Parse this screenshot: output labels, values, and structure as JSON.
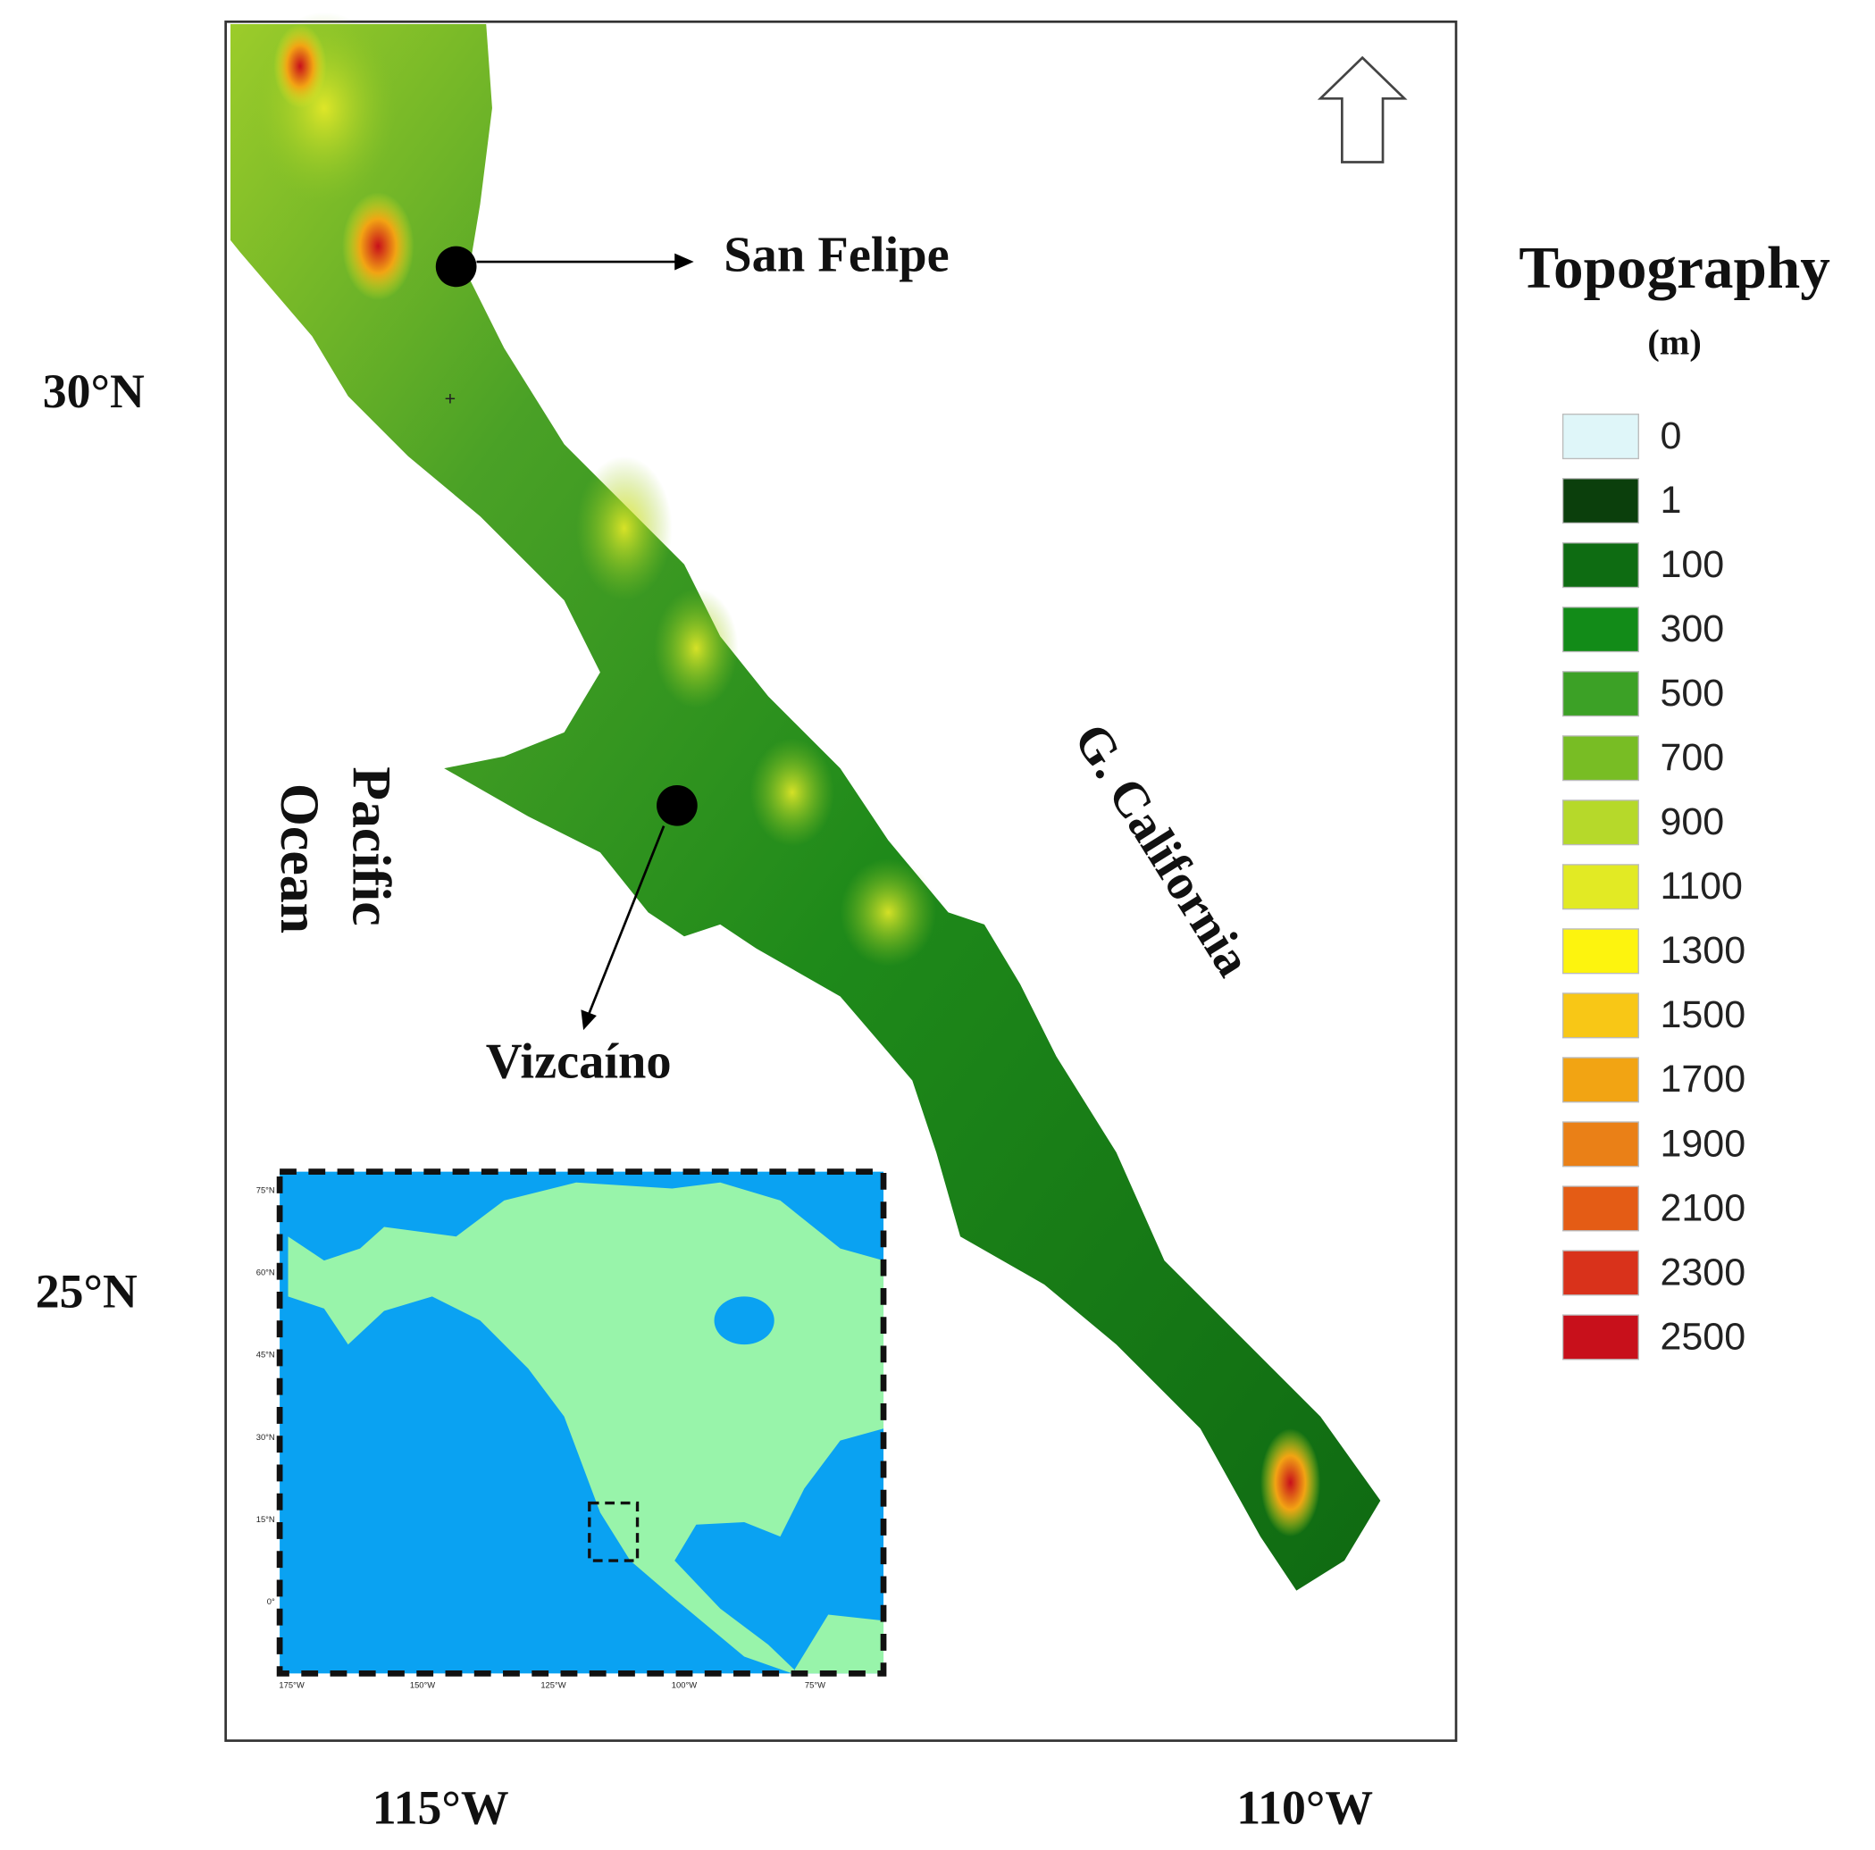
{
  "map": {
    "lat_labels": [
      "30°N",
      "25°N"
    ],
    "lon_labels": [
      "115°W",
      "110°W"
    ],
    "places": [
      "San Felipe",
      "Vizcaíno"
    ],
    "water_labels": {
      "pacific": [
        "Pacific",
        "Ocean"
      ],
      "gulf": "G. California"
    }
  },
  "legend": {
    "title": "Topography",
    "unit": "(m)",
    "items": [
      {
        "label": 0,
        "color": "#dff6f9"
      },
      {
        "label": 1,
        "color": "#0b3f0c"
      },
      {
        "label": 100,
        "color": "#0e6c12"
      },
      {
        "label": 300,
        "color": "#128b18"
      },
      {
        "label": 500,
        "color": "#3ca126"
      },
      {
        "label": 700,
        "color": "#78bd24"
      },
      {
        "label": 900,
        "color": "#b6d92a"
      },
      {
        "label": 1100,
        "color": "#e2ea24"
      },
      {
        "label": 1300,
        "color": "#fdf40e"
      },
      {
        "label": 1500,
        "color": "#f8c716"
      },
      {
        "label": 1700,
        "color": "#f2a413"
      },
      {
        "label": 1900,
        "color": "#ea8017"
      },
      {
        "label": 2100,
        "color": "#e45c15"
      },
      {
        "label": 2300,
        "color": "#d9321b"
      },
      {
        "label": 2500,
        "color": "#c8101b"
      }
    ]
  },
  "inset": {
    "lat_labels": [
      "75°N",
      "60°N",
      "45°N",
      "30°N",
      "15°N",
      "0°"
    ],
    "lon_labels": [
      "175°W",
      "150°W",
      "125°W",
      "100°W",
      "75°W"
    ]
  }
}
